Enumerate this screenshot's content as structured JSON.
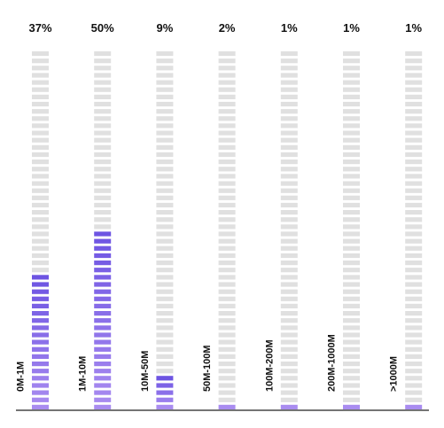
{
  "chart_data": {
    "type": "bar",
    "categories": [
      "0M-1M",
      "1M-10M",
      "10M-50M",
      "50M-100M",
      "100M-200M",
      "200M-1000M",
      ">1000M"
    ],
    "values": [
      37,
      50,
      9,
      2,
      1,
      1,
      1
    ],
    "value_labels": [
      "37%",
      "50%",
      "9%",
      "2%",
      "1%",
      "1%",
      "1%"
    ],
    "unit": "%",
    "ylim": [
      0,
      100
    ],
    "title": "",
    "xlabel": "",
    "ylabel": "",
    "grid": false,
    "legend": "none",
    "colors": {
      "filled_top": "#6d54e2",
      "filled_bottom": "#a98cf0",
      "empty": "#e0e0e0",
      "baseline": "#222222",
      "text": "#111111"
    }
  }
}
